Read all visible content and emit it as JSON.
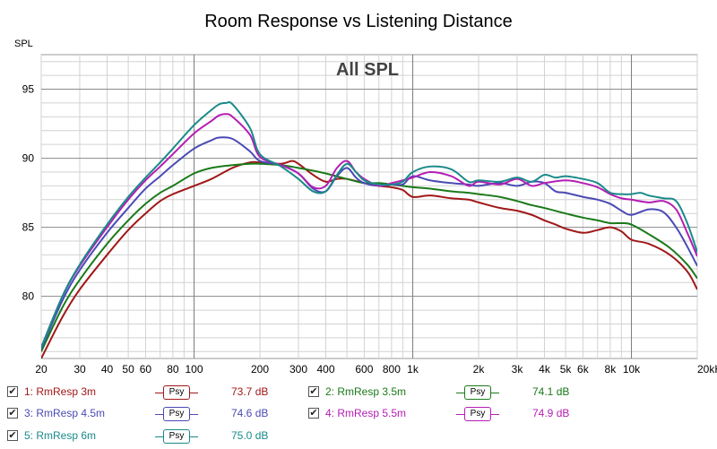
{
  "chart_data": {
    "type": "line",
    "title": "Room Response vs Listening Distance",
    "annotation": "All SPL",
    "ylabel": "SPL",
    "xscale": "log",
    "xlim": [
      20,
      20000
    ],
    "ylim": [
      75.5,
      97.5
    ],
    "yticks": [
      80,
      85,
      90,
      95
    ],
    "xtick_labels": [
      {
        "v": 20,
        "t": "20"
      },
      {
        "v": 30,
        "t": "30"
      },
      {
        "v": 40,
        "t": "40"
      },
      {
        "v": 50,
        "t": "50"
      },
      {
        "v": 60,
        "t": "60"
      },
      {
        "v": 80,
        "t": "80"
      },
      {
        "v": 100,
        "t": "100"
      },
      {
        "v": 200,
        "t": "200"
      },
      {
        "v": 300,
        "t": "300"
      },
      {
        "v": 400,
        "t": "400"
      },
      {
        "v": 600,
        "t": "600"
      },
      {
        "v": 800,
        "t": "800"
      },
      {
        "v": 1000,
        "t": "1k"
      },
      {
        "v": 2000,
        "t": "2k"
      },
      {
        "v": 3000,
        "t": "3k"
      },
      {
        "v": 4000,
        "t": "4k"
      },
      {
        "v": 5000,
        "t": "5k"
      },
      {
        "v": 6000,
        "t": "6k"
      },
      {
        "v": 8000,
        "t": "8k"
      },
      {
        "v": 10000,
        "t": "10k"
      },
      {
        "v": 20000,
        "t": "20kHz"
      }
    ],
    "grid": true,
    "series": [
      {
        "name": "1: RmResp 3m",
        "color": "#a01818",
        "value_label": "73.7 dB",
        "x": [
          20,
          25,
          30,
          40,
          50,
          60,
          70,
          80,
          100,
          120,
          150,
          180,
          200,
          250,
          280,
          300,
          350,
          400,
          450,
          500,
          600,
          700,
          800,
          900,
          1000,
          1200,
          1500,
          1800,
          2000,
          2500,
          3000,
          3500,
          4000,
          4500,
          5000,
          6000,
          7000,
          8000,
          9000,
          10000,
          12000,
          15000,
          18000,
          20000
        ],
        "y": [
          75.5,
          78.5,
          80.5,
          83.0,
          84.8,
          86.0,
          86.9,
          87.4,
          88.0,
          88.5,
          89.3,
          89.7,
          89.7,
          89.6,
          89.8,
          89.6,
          88.8,
          88.3,
          88.5,
          88.5,
          88.2,
          88.0,
          87.9,
          87.7,
          87.2,
          87.3,
          87.1,
          87.0,
          86.8,
          86.4,
          86.2,
          85.9,
          85.5,
          85.2,
          84.9,
          84.6,
          84.8,
          85.0,
          84.7,
          84.1,
          83.8,
          83.0,
          81.8,
          80.5
        ]
      },
      {
        "name": "2: RmResp 3.5m",
        "color": "#1a7a1a",
        "value_label": "74.1 dB",
        "x": [
          20,
          25,
          30,
          40,
          50,
          60,
          70,
          80,
          100,
          120,
          150,
          180,
          200,
          250,
          300,
          350,
          400,
          500,
          600,
          700,
          800,
          900,
          1000,
          1200,
          1500,
          1800,
          2000,
          2500,
          3000,
          3500,
          4000,
          5000,
          6000,
          7000,
          8000,
          9000,
          10000,
          12000,
          15000,
          18000,
          20000
        ],
        "y": [
          76.0,
          79.2,
          81.2,
          83.8,
          85.5,
          86.7,
          87.5,
          88.0,
          88.9,
          89.3,
          89.5,
          89.6,
          89.6,
          89.5,
          89.3,
          89.1,
          88.9,
          88.5,
          88.2,
          88.2,
          88.1,
          88.0,
          87.9,
          87.8,
          87.6,
          87.5,
          87.4,
          87.2,
          86.9,
          86.6,
          86.4,
          86.0,
          85.7,
          85.5,
          85.3,
          85.3,
          85.2,
          84.5,
          83.5,
          82.3,
          81.3
        ]
      },
      {
        "name": "3: RmResp 4.5m",
        "color": "#4a4ab4",
        "value_label": "74.6 dB",
        "x": [
          20,
          25,
          30,
          40,
          50,
          60,
          70,
          80,
          100,
          120,
          130,
          150,
          180,
          200,
          250,
          300,
          350,
          400,
          450,
          500,
          550,
          600,
          700,
          800,
          900,
          1000,
          1200,
          1500,
          1800,
          2000,
          2500,
          3000,
          3500,
          4000,
          4500,
          5000,
          6000,
          7000,
          8000,
          9000,
          10000,
          12000,
          14000,
          16000,
          18000,
          20000
        ],
        "y": [
          76.2,
          79.7,
          81.9,
          84.6,
          86.4,
          87.8,
          88.7,
          89.5,
          90.7,
          91.3,
          91.5,
          91.4,
          90.5,
          89.8,
          89.5,
          88.9,
          87.8,
          87.6,
          88.7,
          89.3,
          88.6,
          88.2,
          88.0,
          88.1,
          88.1,
          88.7,
          88.4,
          88.2,
          88.1,
          88.0,
          88.2,
          88.0,
          88.3,
          88.2,
          87.6,
          87.5,
          87.2,
          87.0,
          86.7,
          86.2,
          85.9,
          86.3,
          86.1,
          85.0,
          83.6,
          82.2
        ]
      },
      {
        "name": "4: RmResp 5.5m",
        "color": "#b41eb4",
        "value_label": "74.9 dB",
        "x": [
          20,
          25,
          30,
          40,
          50,
          60,
          70,
          80,
          100,
          120,
          130,
          140,
          150,
          180,
          200,
          250,
          300,
          350,
          400,
          450,
          500,
          550,
          600,
          700,
          800,
          900,
          1000,
          1200,
          1500,
          1800,
          2000,
          2500,
          3000,
          3500,
          4000,
          5000,
          6000,
          7000,
          8000,
          9000,
          10000,
          12000,
          14000,
          16000,
          18000,
          20000
        ],
        "y": [
          76.3,
          80.0,
          82.2,
          85.0,
          87.0,
          88.4,
          89.4,
          90.3,
          91.8,
          92.7,
          93.1,
          93.2,
          93.0,
          91.7,
          90.1,
          89.5,
          88.9,
          87.9,
          88.0,
          89.3,
          89.8,
          89.0,
          88.5,
          88.0,
          88.2,
          88.4,
          88.6,
          89.0,
          88.7,
          88.0,
          88.3,
          88.1,
          88.5,
          88.0,
          88.2,
          88.4,
          88.2,
          87.9,
          87.4,
          87.1,
          87.0,
          86.8,
          86.9,
          86.3,
          84.6,
          82.9
        ]
      },
      {
        "name": "5: RmResp 6m",
        "color": "#1a8a8a",
        "value_label": "75.0 dB",
        "x": [
          20,
          25,
          30,
          40,
          50,
          60,
          70,
          80,
          100,
          120,
          130,
          140,
          150,
          180,
          200,
          250,
          300,
          350,
          400,
          450,
          500,
          550,
          600,
          700,
          800,
          900,
          1000,
          1200,
          1500,
          1800,
          2000,
          2500,
          3000,
          3500,
          4000,
          4500,
          5000,
          6000,
          7000,
          8000,
          9000,
          10000,
          11000,
          12000,
          14000,
          16000,
          18000,
          20000
        ],
        "y": [
          76.3,
          80.0,
          82.3,
          85.2,
          87.2,
          88.6,
          89.7,
          90.7,
          92.4,
          93.5,
          93.9,
          94.0,
          93.9,
          92.2,
          90.3,
          89.4,
          88.5,
          87.6,
          87.6,
          88.8,
          89.6,
          89.0,
          88.4,
          88.1,
          88.1,
          88.3,
          89.0,
          89.4,
          89.2,
          88.3,
          88.4,
          88.3,
          88.6,
          88.3,
          88.8,
          88.6,
          88.7,
          88.5,
          88.2,
          87.5,
          87.4,
          87.4,
          87.5,
          87.3,
          87.1,
          86.9,
          85.3,
          83.2
        ]
      }
    ]
  },
  "legend": {
    "items": [
      {
        "label": "1: RmResp 3m",
        "value": "73.7 dB",
        "color": "#a01818",
        "psy": "Psy",
        "checked": true
      },
      {
        "label": "2: RmResp 3.5m",
        "value": "74.1 dB",
        "color": "#1a7a1a",
        "psy": "Psy",
        "checked": true
      },
      {
        "label": "3: RmResp 4.5m",
        "value": "74.6 dB",
        "color": "#4a4ab4",
        "psy": "Psy",
        "checked": true
      },
      {
        "label": "4: RmResp 5.5m",
        "value": "74.9 dB",
        "color": "#b41eb4",
        "psy": "Psy",
        "checked": true
      },
      {
        "label": "5: RmResp 6m",
        "value": "75.0 dB",
        "color": "#1a8a8a",
        "psy": "Psy",
        "checked": true
      }
    ]
  }
}
